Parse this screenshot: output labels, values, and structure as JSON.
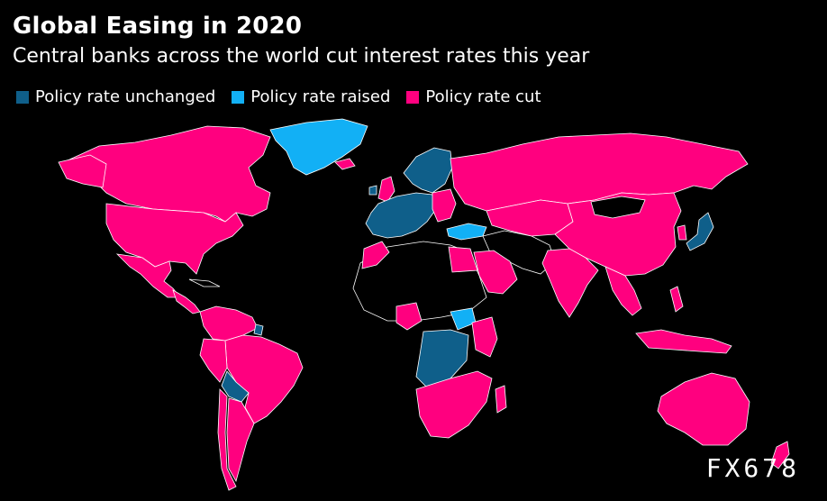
{
  "title": "Global Easing in 2020",
  "subtitle": "Central banks across the world cut interest rates this year",
  "legend": [
    {
      "label": "Policy rate unchanged",
      "color": "#0f5f8a"
    },
    {
      "label": "Policy rate raised",
      "color": "#12b0f5"
    },
    {
      "label": "Policy rate cut",
      "color": "#ff007f"
    }
  ],
  "colors": {
    "unchanged": "#0f5f8a",
    "raised": "#12b0f5",
    "cut": "#ff007f",
    "no_data": "#000000",
    "border": "#ffffff"
  },
  "watermark": "FX678",
  "regions": {
    "cut": [
      "Canada",
      "United States",
      "Mexico",
      "Central America",
      "Brazil",
      "Argentina",
      "Chile",
      "Peru",
      "Colombia",
      "Russia",
      "China",
      "India",
      "Indonesia",
      "Australia",
      "New Zealand",
      "Morocco",
      "Egypt",
      "Saudi Arabia",
      "South Africa",
      "Nigeria",
      "Kenya",
      "United Kingdom",
      "Poland",
      "Iceland",
      "Thailand",
      "Philippines",
      "Malaysia"
    ],
    "unchanged": [
      "Sweden",
      "Norway",
      "Finland",
      "Germany",
      "France",
      "Spain",
      "Italy",
      "Ireland",
      "Japan",
      "Angola",
      "DR Congo",
      "Bolivia",
      "Suriname"
    ],
    "raised": [
      "Greenland",
      "Turkey",
      "South Sudan"
    ]
  }
}
